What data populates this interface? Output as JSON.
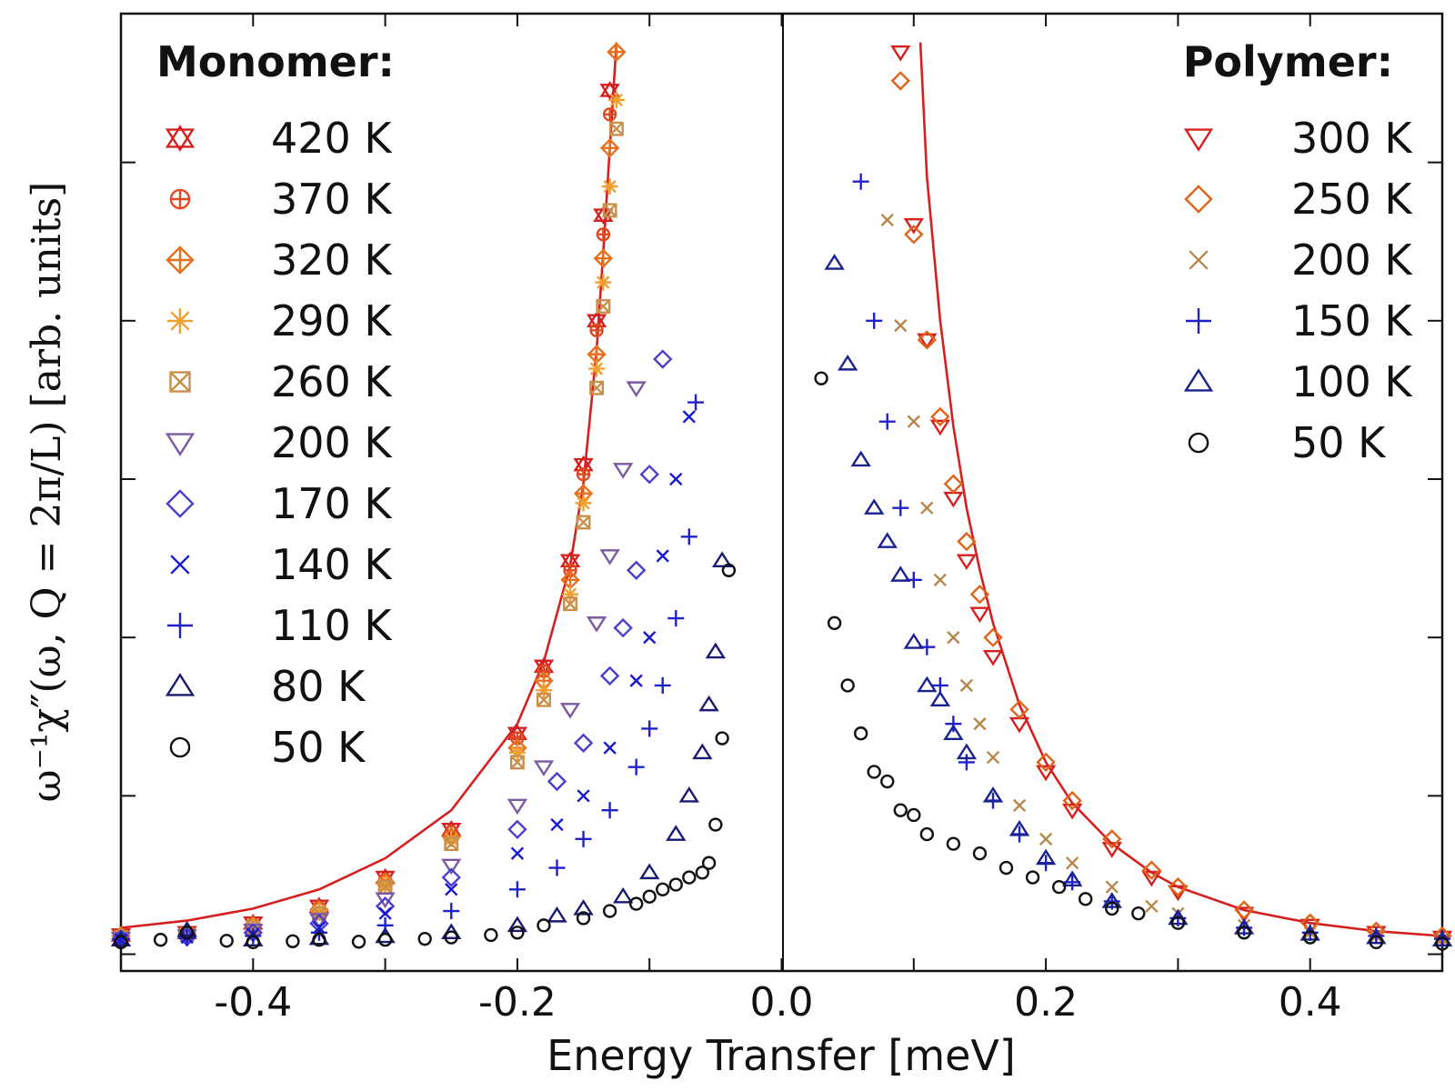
{
  "chart_data": {
    "type": "scatter",
    "xlabel": "Energy Transfer [meV]",
    "ylabel": "ω⁻¹χ″(ω, Q = 2π/L) [arb. units]",
    "xlim": [
      -0.5,
      0.5
    ],
    "x_ticks": [
      "-0.4",
      "-0.2",
      "0.0",
      "0.2",
      "0.4"
    ],
    "y_tick_labels": false,
    "grid": false,
    "panels": [
      {
        "legend_title": "Monomer:",
        "legend_position": "top-left",
        "series": [
          {
            "name": "420 K",
            "color": "#d62020",
            "marker": "star-of-david",
            "x": [
              -0.5,
              -0.45,
              -0.4,
              -0.35,
              -0.3,
              -0.25,
              -0.2,
              -0.18,
              -0.16,
              -0.15,
              -0.14,
              -0.135,
              -0.13
            ],
            "y": [
              0.4,
              0.45,
              0.65,
              1.0,
              1.6,
              2.6,
              4.6,
              6.0,
              8.2,
              10.2,
              13.2,
              15.4,
              18.0
            ]
          },
          {
            "name": "370 K",
            "color": "#e04a20",
            "marker": "circle-plus",
            "x": [
              -0.5,
              -0.45,
              -0.4,
              -0.35,
              -0.3,
              -0.25,
              -0.2,
              -0.18,
              -0.16,
              -0.15,
              -0.14,
              -0.135,
              -0.13
            ],
            "y": [
              0.4,
              0.45,
              0.62,
              0.97,
              1.55,
              2.55,
              4.5,
              5.9,
              8.0,
              10.0,
              13.0,
              15.0,
              17.5
            ]
          },
          {
            "name": "320 K",
            "color": "#e8701e",
            "marker": "diamond-plus",
            "x": [
              -0.5,
              -0.45,
              -0.4,
              -0.35,
              -0.3,
              -0.25,
              -0.2,
              -0.18,
              -0.16,
              -0.15,
              -0.14,
              -0.135,
              -0.13,
              -0.125
            ],
            "y": [
              0.38,
              0.43,
              0.6,
              0.93,
              1.5,
              2.45,
              4.3,
              5.7,
              7.8,
              9.6,
              12.5,
              14.5,
              16.8,
              18.8
            ]
          },
          {
            "name": "290 K",
            "color": "#f0a030",
            "marker": "asterisk",
            "x": [
              -0.5,
              -0.45,
              -0.4,
              -0.35,
              -0.3,
              -0.25,
              -0.2,
              -0.18,
              -0.16,
              -0.15,
              -0.14,
              -0.135,
              -0.13,
              -0.125
            ],
            "y": [
              0.36,
              0.42,
              0.58,
              0.9,
              1.45,
              2.4,
              4.2,
              5.5,
              7.5,
              9.4,
              12.2,
              14.0,
              16.0,
              17.8
            ]
          },
          {
            "name": "260 K",
            "color": "#c8904a",
            "marker": "square-x",
            "x": [
              -0.5,
              -0.45,
              -0.4,
              -0.35,
              -0.3,
              -0.25,
              -0.2,
              -0.18,
              -0.16,
              -0.15,
              -0.14,
              -0.135,
              -0.13,
              -0.125
            ],
            "y": [
              0.35,
              0.41,
              0.55,
              0.85,
              1.4,
              2.3,
              4.0,
              5.3,
              7.3,
              9.0,
              11.8,
              13.5,
              15.5,
              17.2
            ]
          },
          {
            "name": "200 K",
            "color": "#7a5aa0",
            "marker": "triangle-down",
            "x": [
              -0.5,
              -0.45,
              -0.4,
              -0.35,
              -0.3,
              -0.25,
              -0.2,
              -0.18,
              -0.16,
              -0.14,
              -0.13,
              -0.12,
              -0.11
            ],
            "y": [
              0.33,
              0.38,
              0.5,
              0.72,
              1.15,
              1.85,
              3.1,
              3.9,
              5.1,
              6.9,
              8.3,
              10.1,
              11.8
            ]
          },
          {
            "name": "170 K",
            "color": "#4a40cc",
            "marker": "diamond",
            "x": [
              -0.5,
              -0.45,
              -0.4,
              -0.35,
              -0.3,
              -0.25,
              -0.2,
              -0.17,
              -0.15,
              -0.13,
              -0.12,
              -0.11,
              -0.1,
              -0.09
            ],
            "y": [
              0.32,
              0.36,
              0.45,
              0.64,
              1.0,
              1.6,
              2.6,
              3.6,
              4.4,
              5.8,
              6.8,
              8.0,
              10.0,
              12.4
            ]
          },
          {
            "name": "140 K",
            "color": "#1818d0",
            "marker": "x",
            "x": [
              -0.5,
              -0.45,
              -0.4,
              -0.35,
              -0.3,
              -0.25,
              -0.2,
              -0.17,
              -0.15,
              -0.13,
              -0.11,
              -0.1,
              -0.09,
              -0.08,
              -0.07
            ],
            "y": [
              0.3,
              0.35,
              0.42,
              0.55,
              0.85,
              1.35,
              2.1,
              2.7,
              3.3,
              4.3,
              5.7,
              6.6,
              8.3,
              9.9,
              11.2
            ]
          },
          {
            "name": "110 K",
            "color": "#2020c8",
            "marker": "plus",
            "x": [
              -0.5,
              -0.45,
              -0.4,
              -0.35,
              -0.3,
              -0.25,
              -0.2,
              -0.17,
              -0.15,
              -0.13,
              -0.11,
              -0.1,
              -0.09,
              -0.08,
              -0.07,
              -0.065
            ],
            "y": [
              0.3,
              0.34,
              0.38,
              0.45,
              0.6,
              0.9,
              1.35,
              1.8,
              2.4,
              3.0,
              3.9,
              4.7,
              5.6,
              7.0,
              8.7,
              11.5
            ]
          },
          {
            "name": "80 K",
            "color": "#1a1a70",
            "marker": "triangle-up",
            "x": [
              -0.5,
              -0.45,
              -0.4,
              -0.35,
              -0.3,
              -0.25,
              -0.2,
              -0.17,
              -0.15,
              -0.12,
              -0.1,
              -0.08,
              -0.07,
              -0.06,
              -0.055,
              -0.05,
              -0.045
            ],
            "y": [
              0.3,
              0.5,
              0.3,
              0.33,
              0.37,
              0.45,
              0.6,
              0.8,
              0.95,
              1.2,
              1.7,
              2.5,
              3.3,
              4.2,
              5.2,
              6.3,
              8.2
            ]
          },
          {
            "name": "50 K",
            "color": "#111111",
            "marker": "circle",
            "x": [
              -0.5,
              -0.47,
              -0.45,
              -0.42,
              -0.4,
              -0.37,
              -0.35,
              -0.32,
              -0.3,
              -0.27,
              -0.25,
              -0.22,
              -0.2,
              -0.18,
              -0.15,
              -0.13,
              -0.11,
              -0.1,
              -0.09,
              -0.08,
              -0.07,
              -0.06,
              -0.055,
              -0.05,
              -0.045,
              -0.04
            ],
            "y": [
              0.25,
              0.3,
              0.45,
              0.28,
              0.25,
              0.27,
              0.3,
              0.26,
              0.3,
              0.32,
              0.35,
              0.4,
              0.45,
              0.6,
              0.75,
              0.9,
              1.05,
              1.2,
              1.35,
              1.45,
              1.6,
              1.7,
              1.9,
              2.7,
              4.5,
              8.0
            ]
          }
        ]
      },
      {
        "legend_title": "Polymer:",
        "legend_position": "top-right",
        "series": [
          {
            "name": "300 K",
            "color": "#d62020",
            "marker": "triangle-down",
            "x": [
              0.09,
              0.1,
              0.11,
              0.12,
              0.13,
              0.14,
              0.15,
              0.16,
              0.18,
              0.2,
              0.22,
              0.25,
              0.28,
              0.3,
              0.35,
              0.4,
              0.45,
              0.5
            ],
            "y": [
              18.8,
              15.2,
              12.8,
              11.0,
              9.5,
              8.2,
              7.1,
              6.2,
              4.8,
              3.8,
              3.0,
              2.2,
              1.6,
              1.3,
              0.85,
              0.6,
              0.45,
              0.35
            ]
          },
          {
            "name": "250 K",
            "color": "#e06418",
            "marker": "diamond",
            "x": [
              0.09,
              0.1,
              0.11,
              0.12,
              0.13,
              0.14,
              0.15,
              0.16,
              0.18,
              0.2,
              0.22,
              0.25,
              0.28,
              0.3,
              0.35,
              0.4,
              0.45,
              0.5
            ],
            "y": [
              18.2,
              15.0,
              12.8,
              11.2,
              9.8,
              8.6,
              7.5,
              6.6,
              5.1,
              4.0,
              3.2,
              2.4,
              1.75,
              1.4,
              0.92,
              0.65,
              0.48,
              0.38
            ]
          },
          {
            "name": "200 K",
            "color": "#b8864a",
            "marker": "x",
            "x": [
              0.08,
              0.09,
              0.1,
              0.11,
              0.12,
              0.13,
              0.14,
              0.15,
              0.16,
              0.18,
              0.2,
              0.22,
              0.25,
              0.28,
              0.3,
              0.35,
              0.4,
              0.45,
              0.5
            ],
            "y": [
              15.3,
              13.1,
              11.1,
              9.3,
              7.8,
              6.6,
              5.6,
              4.8,
              4.1,
              3.1,
              2.4,
              1.9,
              1.4,
              1.0,
              0.85,
              0.6,
              0.45,
              0.38,
              0.32
            ]
          },
          {
            "name": "150 K",
            "color": "#2020d0",
            "marker": "plus",
            "x": [
              0.06,
              0.07,
              0.08,
              0.09,
              0.1,
              0.11,
              0.12,
              0.13,
              0.14,
              0.16,
              0.18,
              0.2,
              0.22,
              0.25,
              0.3,
              0.35,
              0.4,
              0.45,
              0.5
            ],
            "y": [
              16.1,
              13.2,
              11.1,
              9.3,
              7.8,
              6.4,
              5.6,
              4.8,
              4.0,
              3.2,
              2.5,
              1.9,
              1.5,
              1.1,
              0.75,
              0.55,
              0.45,
              0.38,
              0.32
            ]
          },
          {
            "name": "100 K",
            "color": "#1a2290",
            "marker": "triangle-up",
            "x": [
              0.04,
              0.05,
              0.06,
              0.07,
              0.08,
              0.09,
              0.1,
              0.11,
              0.12,
              0.13,
              0.14,
              0.16,
              0.18,
              0.2,
              0.22,
              0.25,
              0.3,
              0.35,
              0.4,
              0.45,
              0.5
            ],
            "y": [
              14.4,
              12.3,
              10.3,
              9.3,
              8.6,
              7.9,
              6.5,
              5.6,
              5.3,
              4.6,
              4.2,
              3.3,
              2.6,
              2.0,
              1.55,
              1.1,
              0.75,
              0.55,
              0.42,
              0.35,
              0.3
            ]
          },
          {
            "name": "50 K",
            "color": "#111111",
            "marker": "circle",
            "x": [
              0.03,
              0.04,
              0.05,
              0.06,
              0.07,
              0.08,
              0.09,
              0.1,
              0.11,
              0.13,
              0.15,
              0.17,
              0.19,
              0.21,
              0.23,
              0.25,
              0.27,
              0.3,
              0.35,
              0.4,
              0.45,
              0.5
            ],
            "y": [
              12.0,
              6.9,
              5.6,
              4.6,
              3.8,
              3.6,
              3.0,
              2.9,
              2.5,
              2.3,
              2.1,
              1.8,
              1.6,
              1.4,
              1.15,
              0.95,
              0.85,
              0.65,
              0.45,
              0.35,
              0.25,
              0.22
            ]
          }
        ]
      }
    ],
    "fit_curves": [
      {
        "color": "#d62020",
        "x": [
          -0.5,
          -0.45,
          -0.4,
          -0.35,
          -0.3,
          -0.25,
          -0.2,
          -0.18,
          -0.16,
          -0.15,
          -0.14,
          -0.135,
          -0.13,
          -0.125
        ],
        "y": [
          0.55,
          0.7,
          0.95,
          1.35,
          2.0,
          3.0,
          4.8,
          6.1,
          8.1,
          9.8,
          12.6,
          14.6,
          16.8,
          19.0
        ]
      },
      {
        "color": "#d62020",
        "x": [
          0.105,
          0.11,
          0.12,
          0.13,
          0.14,
          0.15,
          0.16,
          0.18,
          0.2,
          0.22,
          0.25,
          0.28,
          0.3,
          0.35,
          0.4,
          0.45,
          0.5
        ],
        "y": [
          19.0,
          16.2,
          13.2,
          11.0,
          9.3,
          8.0,
          6.9,
          5.2,
          4.0,
          3.15,
          2.3,
          1.7,
          1.4,
          0.92,
          0.65,
          0.48,
          0.38
        ]
      }
    ]
  }
}
